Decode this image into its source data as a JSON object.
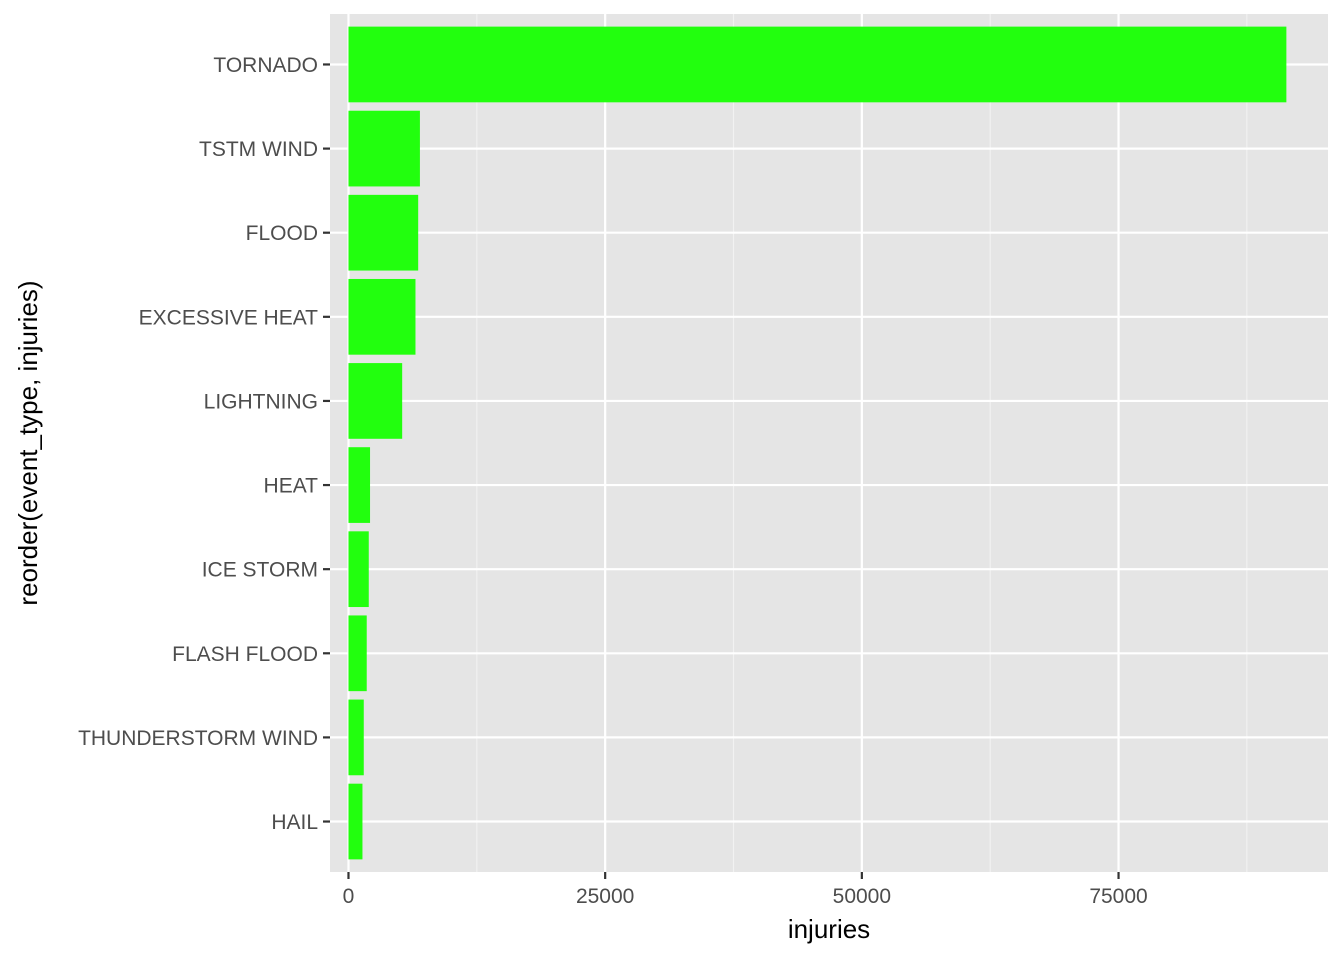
{
  "chart_data": {
    "type": "bar",
    "orientation": "horizontal",
    "xlabel": "injuries",
    "ylabel": "reorder(event_type, injuries)",
    "xlim": [
      -1800,
      95400
    ],
    "x_ticks": [
      0,
      25000,
      50000,
      75000
    ],
    "x_tick_labels": [
      "0",
      "25000",
      "50000",
      "75000"
    ],
    "categories": [
      "TORNADO",
      "TSTM WIND",
      "FLOOD",
      "EXCESSIVE HEAT",
      "LIGHTNING",
      "HEAT",
      "ICE STORM",
      "FLASH FLOOD",
      "THUNDERSTORM WIND",
      "HAIL"
    ],
    "values": [
      91346,
      6957,
      6789,
      6525,
      5230,
      2100,
      1975,
      1777,
      1488,
      1361
    ],
    "grid": true,
    "legend": "none"
  },
  "colors": {
    "bar": "#22ff0e",
    "panel": "#e5e5e5",
    "grid_major": "#ffffff",
    "grid_minor": "#f2f2f2",
    "tick_text": "#4d4d4d",
    "tick_mark": "#333333"
  }
}
